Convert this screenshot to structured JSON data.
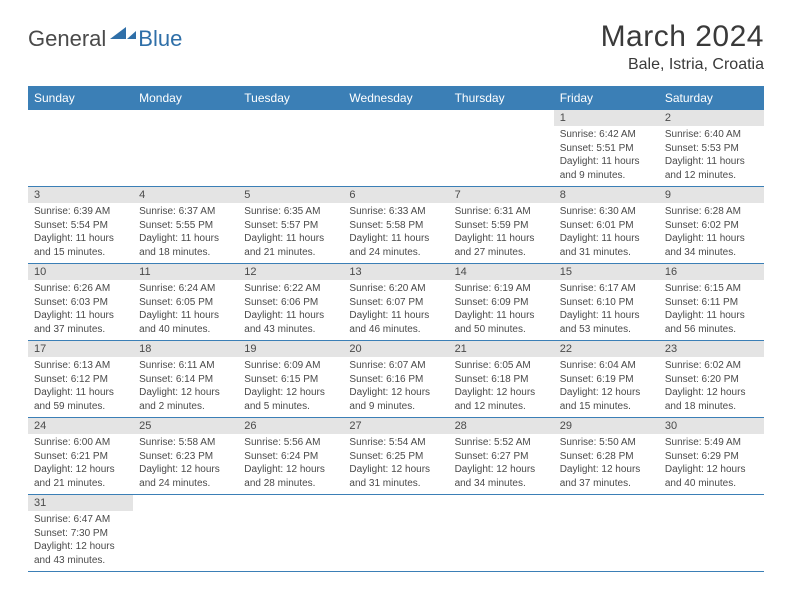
{
  "brand": {
    "part1": "General",
    "part2": "Blue"
  },
  "title": "March 2024",
  "location": "Bale, Istria, Croatia",
  "colors": {
    "header_bg": "#3b7fb6",
    "header_text": "#ffffff",
    "daynum_bg": "#e4e4e4",
    "body_text": "#4a4a4a",
    "border": "#3b7fb6",
    "brand_blue": "#2f6fa8"
  },
  "dayHeaders": [
    "Sunday",
    "Monday",
    "Tuesday",
    "Wednesday",
    "Thursday",
    "Friday",
    "Saturday"
  ],
  "weeks": [
    [
      null,
      null,
      null,
      null,
      null,
      {
        "n": "1",
        "sr": "Sunrise: 6:42 AM",
        "ss": "Sunset: 5:51 PM",
        "d1": "Daylight: 11 hours",
        "d2": "and 9 minutes."
      },
      {
        "n": "2",
        "sr": "Sunrise: 6:40 AM",
        "ss": "Sunset: 5:53 PM",
        "d1": "Daylight: 11 hours",
        "d2": "and 12 minutes."
      }
    ],
    [
      {
        "n": "3",
        "sr": "Sunrise: 6:39 AM",
        "ss": "Sunset: 5:54 PM",
        "d1": "Daylight: 11 hours",
        "d2": "and 15 minutes."
      },
      {
        "n": "4",
        "sr": "Sunrise: 6:37 AM",
        "ss": "Sunset: 5:55 PM",
        "d1": "Daylight: 11 hours",
        "d2": "and 18 minutes."
      },
      {
        "n": "5",
        "sr": "Sunrise: 6:35 AM",
        "ss": "Sunset: 5:57 PM",
        "d1": "Daylight: 11 hours",
        "d2": "and 21 minutes."
      },
      {
        "n": "6",
        "sr": "Sunrise: 6:33 AM",
        "ss": "Sunset: 5:58 PM",
        "d1": "Daylight: 11 hours",
        "d2": "and 24 minutes."
      },
      {
        "n": "7",
        "sr": "Sunrise: 6:31 AM",
        "ss": "Sunset: 5:59 PM",
        "d1": "Daylight: 11 hours",
        "d2": "and 27 minutes."
      },
      {
        "n": "8",
        "sr": "Sunrise: 6:30 AM",
        "ss": "Sunset: 6:01 PM",
        "d1": "Daylight: 11 hours",
        "d2": "and 31 minutes."
      },
      {
        "n": "9",
        "sr": "Sunrise: 6:28 AM",
        "ss": "Sunset: 6:02 PM",
        "d1": "Daylight: 11 hours",
        "d2": "and 34 minutes."
      }
    ],
    [
      {
        "n": "10",
        "sr": "Sunrise: 6:26 AM",
        "ss": "Sunset: 6:03 PM",
        "d1": "Daylight: 11 hours",
        "d2": "and 37 minutes."
      },
      {
        "n": "11",
        "sr": "Sunrise: 6:24 AM",
        "ss": "Sunset: 6:05 PM",
        "d1": "Daylight: 11 hours",
        "d2": "and 40 minutes."
      },
      {
        "n": "12",
        "sr": "Sunrise: 6:22 AM",
        "ss": "Sunset: 6:06 PM",
        "d1": "Daylight: 11 hours",
        "d2": "and 43 minutes."
      },
      {
        "n": "13",
        "sr": "Sunrise: 6:20 AM",
        "ss": "Sunset: 6:07 PM",
        "d1": "Daylight: 11 hours",
        "d2": "and 46 minutes."
      },
      {
        "n": "14",
        "sr": "Sunrise: 6:19 AM",
        "ss": "Sunset: 6:09 PM",
        "d1": "Daylight: 11 hours",
        "d2": "and 50 minutes."
      },
      {
        "n": "15",
        "sr": "Sunrise: 6:17 AM",
        "ss": "Sunset: 6:10 PM",
        "d1": "Daylight: 11 hours",
        "d2": "and 53 minutes."
      },
      {
        "n": "16",
        "sr": "Sunrise: 6:15 AM",
        "ss": "Sunset: 6:11 PM",
        "d1": "Daylight: 11 hours",
        "d2": "and 56 minutes."
      }
    ],
    [
      {
        "n": "17",
        "sr": "Sunrise: 6:13 AM",
        "ss": "Sunset: 6:12 PM",
        "d1": "Daylight: 11 hours",
        "d2": "and 59 minutes."
      },
      {
        "n": "18",
        "sr": "Sunrise: 6:11 AM",
        "ss": "Sunset: 6:14 PM",
        "d1": "Daylight: 12 hours",
        "d2": "and 2 minutes."
      },
      {
        "n": "19",
        "sr": "Sunrise: 6:09 AM",
        "ss": "Sunset: 6:15 PM",
        "d1": "Daylight: 12 hours",
        "d2": "and 5 minutes."
      },
      {
        "n": "20",
        "sr": "Sunrise: 6:07 AM",
        "ss": "Sunset: 6:16 PM",
        "d1": "Daylight: 12 hours",
        "d2": "and 9 minutes."
      },
      {
        "n": "21",
        "sr": "Sunrise: 6:05 AM",
        "ss": "Sunset: 6:18 PM",
        "d1": "Daylight: 12 hours",
        "d2": "and 12 minutes."
      },
      {
        "n": "22",
        "sr": "Sunrise: 6:04 AM",
        "ss": "Sunset: 6:19 PM",
        "d1": "Daylight: 12 hours",
        "d2": "and 15 minutes."
      },
      {
        "n": "23",
        "sr": "Sunrise: 6:02 AM",
        "ss": "Sunset: 6:20 PM",
        "d1": "Daylight: 12 hours",
        "d2": "and 18 minutes."
      }
    ],
    [
      {
        "n": "24",
        "sr": "Sunrise: 6:00 AM",
        "ss": "Sunset: 6:21 PM",
        "d1": "Daylight: 12 hours",
        "d2": "and 21 minutes."
      },
      {
        "n": "25",
        "sr": "Sunrise: 5:58 AM",
        "ss": "Sunset: 6:23 PM",
        "d1": "Daylight: 12 hours",
        "d2": "and 24 minutes."
      },
      {
        "n": "26",
        "sr": "Sunrise: 5:56 AM",
        "ss": "Sunset: 6:24 PM",
        "d1": "Daylight: 12 hours",
        "d2": "and 28 minutes."
      },
      {
        "n": "27",
        "sr": "Sunrise: 5:54 AM",
        "ss": "Sunset: 6:25 PM",
        "d1": "Daylight: 12 hours",
        "d2": "and 31 minutes."
      },
      {
        "n": "28",
        "sr": "Sunrise: 5:52 AM",
        "ss": "Sunset: 6:27 PM",
        "d1": "Daylight: 12 hours",
        "d2": "and 34 minutes."
      },
      {
        "n": "29",
        "sr": "Sunrise: 5:50 AM",
        "ss": "Sunset: 6:28 PM",
        "d1": "Daylight: 12 hours",
        "d2": "and 37 minutes."
      },
      {
        "n": "30",
        "sr": "Sunrise: 5:49 AM",
        "ss": "Sunset: 6:29 PM",
        "d1": "Daylight: 12 hours",
        "d2": "and 40 minutes."
      }
    ],
    [
      {
        "n": "31",
        "sr": "Sunrise: 6:47 AM",
        "ss": "Sunset: 7:30 PM",
        "d1": "Daylight: 12 hours",
        "d2": "and 43 minutes."
      },
      null,
      null,
      null,
      null,
      null,
      null
    ]
  ]
}
